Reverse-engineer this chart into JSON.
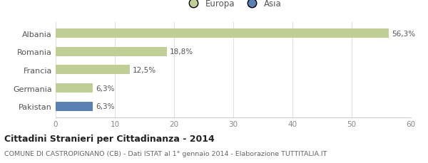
{
  "categories": [
    "Albania",
    "Romania",
    "Francia",
    "Germania",
    "Pakistan"
  ],
  "values": [
    56.3,
    18.8,
    12.5,
    6.3,
    6.3
  ],
  "labels": [
    "56,3%",
    "18,8%",
    "12,5%",
    "6,3%",
    "6,3%"
  ],
  "bar_colors": [
    "#bfcf96",
    "#bfcf96",
    "#bfcf96",
    "#bfcf96",
    "#5b80b4"
  ],
  "legend_labels": [
    "Europa",
    "Asia"
  ],
  "legend_colors": [
    "#bfcf96",
    "#5b80b4"
  ],
  "xlim": [
    0,
    60
  ],
  "xticks": [
    0,
    10,
    20,
    30,
    40,
    50,
    60
  ],
  "title": "Cittadini Stranieri per Cittadinanza - 2014",
  "subtitle": "COMUNE DI CASTROPIGNANO (CB) - Dati ISTAT al 1° gennaio 2014 - Elaborazione TUTTITALIA.IT",
  "background_color": "#ffffff",
  "bar_height": 0.5
}
